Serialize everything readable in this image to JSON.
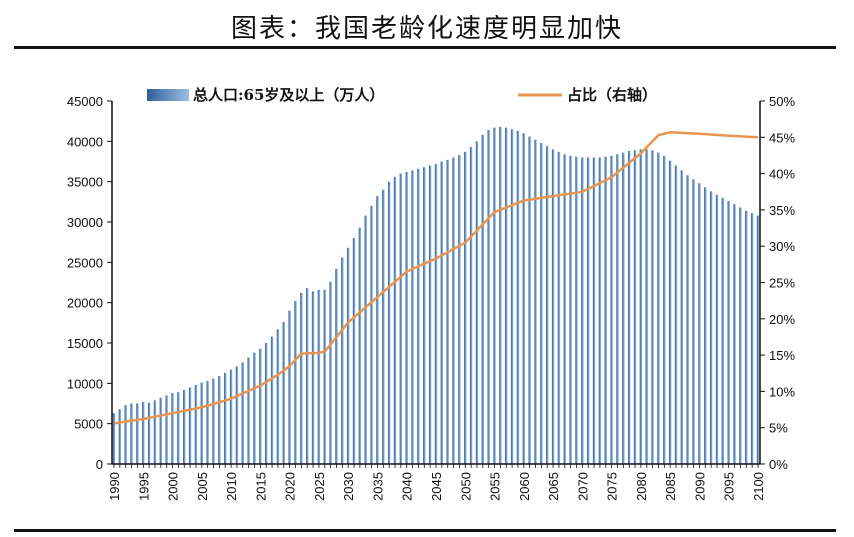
{
  "title": "图表：我国老龄化速度明显加快",
  "chart_data": {
    "type": "bar+line",
    "legend": {
      "placement": "top"
    },
    "x_start": 1990,
    "x_end": 2100,
    "x_tick_labels": [
      "1990",
      "1995",
      "2000",
      "2005",
      "2010",
      "2015",
      "2020",
      "2025",
      "2030",
      "2035",
      "2040",
      "2045",
      "2050",
      "2055",
      "2060",
      "2065",
      "2070",
      "2075",
      "2080",
      "2085",
      "2090",
      "2095",
      "2100"
    ],
    "y_left": {
      "range": [
        0,
        45000
      ],
      "ticks": [
        "0",
        "5000",
        "10000",
        "15000",
        "20000",
        "25000",
        "30000",
        "35000",
        "40000",
        "45000"
      ]
    },
    "y_right": {
      "range": [
        0,
        50
      ],
      "ticks": [
        "0%",
        "5%",
        "10%",
        "15%",
        "20%",
        "25%",
        "30%",
        "35%",
        "40%",
        "45%",
        "50%"
      ]
    },
    "grid": false,
    "colors": {
      "bars": "#4a7fb5",
      "line": "#e8964f"
    },
    "series": [
      {
        "name": "总人口:65岁及以上（万人）",
        "type": "bar",
        "axis": "left",
        "values": [
          6300,
          6800,
          7300,
          7500,
          7500,
          7700,
          7600,
          7900,
          8200,
          8500,
          8800,
          8900,
          9200,
          9500,
          9800,
          10100,
          10300,
          10600,
          10900,
          11300,
          11700,
          12100,
          12600,
          13200,
          13800,
          14300,
          15000,
          15800,
          16700,
          17600,
          19000,
          20200,
          21200,
          21800,
          21400,
          21600,
          21600,
          22600,
          24200,
          25600,
          26800,
          28000,
          29300,
          30800,
          32000,
          33200,
          34000,
          35000,
          35600,
          36000,
          36200,
          36400,
          36600,
          36800,
          37000,
          37200,
          37500,
          37700,
          38000,
          38300,
          38700,
          39300,
          40000,
          40800,
          41400,
          41700,
          41800,
          41700,
          41500,
          41300,
          41000,
          40600,
          40200,
          39800,
          39400,
          39000,
          38700,
          38400,
          38200,
          38100,
          38000,
          38000,
          38000,
          38000,
          38100,
          38200,
          38400,
          38600,
          38800,
          38900,
          39000,
          39000,
          38900,
          38600,
          38200,
          37600,
          37000,
          36400,
          35800,
          35300,
          34800,
          34300,
          33800,
          33400,
          33000,
          32600,
          32200,
          31800,
          31400,
          31100,
          30800
        ]
      },
      {
        "name": "占比（右轴）",
        "type": "line",
        "axis": "right",
        "x": [
          1990,
          1995,
          2000,
          2005,
          2010,
          2015,
          2018,
          2020,
          2022,
          2025,
          2026,
          2030,
          2035,
          2040,
          2045,
          2050,
          2055,
          2060,
          2065,
          2070,
          2075,
          2080,
          2083,
          2085,
          2090,
          2095,
          2100
        ],
        "values": [
          5.6,
          6.2,
          7.0,
          7.8,
          9.0,
          10.8,
          12.3,
          13.5,
          15.2,
          15.3,
          15.5,
          19.5,
          23.0,
          26.5,
          28.3,
          30.5,
          34.7,
          36.3,
          36.9,
          37.5,
          39.5,
          42.8,
          45.3,
          45.7,
          45.5,
          45.2,
          45.0
        ]
      }
    ]
  }
}
